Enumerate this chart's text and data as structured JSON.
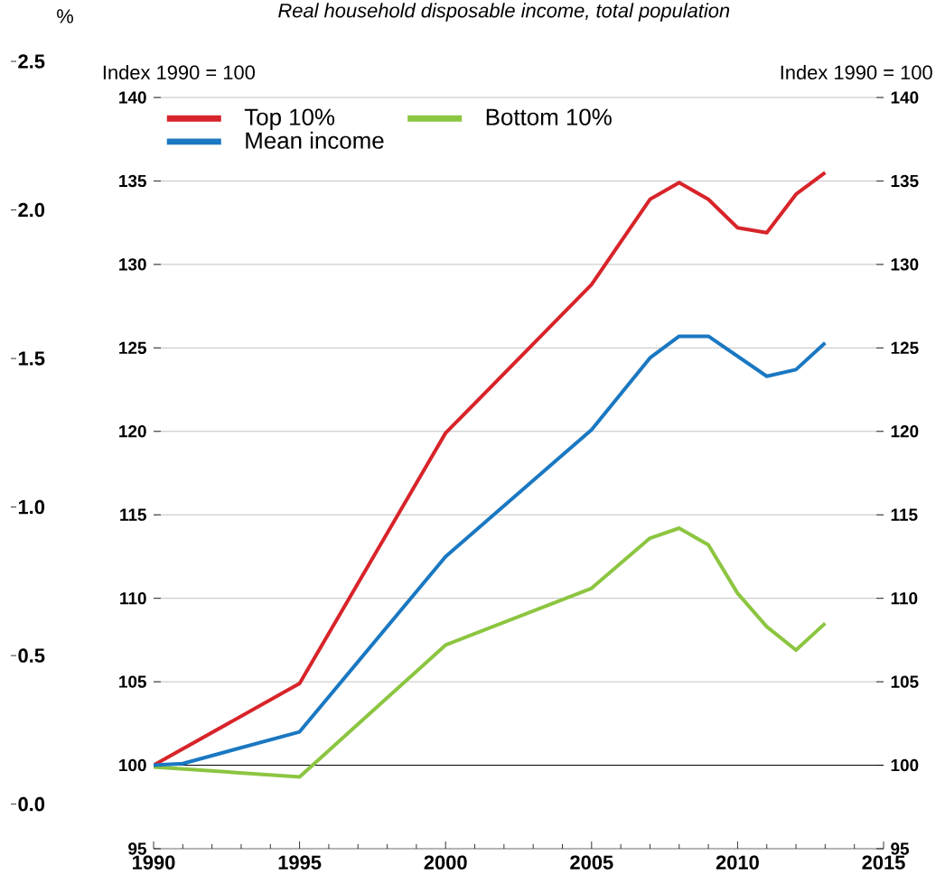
{
  "chart_data": {
    "type": "line",
    "title": "Real household disposable income, total population",
    "ylabel": "Index 1990 = 100",
    "y2label": "Index 1990 = 100",
    "y3label": "%",
    "series": [
      {
        "name": "Top 10%",
        "color": "#d7242a",
        "x": [
          1990,
          1995,
          2000,
          2005,
          2007,
          2008,
          2009,
          2010,
          2011,
          2012,
          2013
        ],
        "values": [
          100,
          104.9,
          119.9,
          128.8,
          133.9,
          134.9,
          133.9,
          132.2,
          131.9,
          134.2,
          135.5
        ]
      },
      {
        "name": "Bottom 10%",
        "color": "#8cc540",
        "x": [
          1990,
          1995,
          2000,
          2005,
          2007,
          2008,
          2009,
          2010,
          2011,
          2012,
          2013
        ],
        "values": [
          99.9,
          99.3,
          107.2,
          110.6,
          113.6,
          114.2,
          113.2,
          110.3,
          108.3,
          106.9,
          108.5
        ]
      },
      {
        "name": "Mean income",
        "color": "#1a78c2",
        "x": [
          1990,
          1991,
          1995,
          2000,
          2005,
          2007,
          2008,
          2009,
          2010,
          2011,
          2012,
          2013
        ],
        "values": [
          100,
          100.1,
          102.0,
          112.5,
          120.1,
          124.4,
          125.7,
          125.7,
          124.5,
          123.3,
          123.7,
          125.3
        ]
      }
    ],
    "xlim": [
      1990,
      2015
    ],
    "xticks": [
      1990,
      1995,
      2000,
      2005,
      2010,
      2015
    ],
    "ylim": [
      95,
      140
    ],
    "yticks": [
      95,
      100,
      105,
      110,
      115,
      120,
      125,
      130,
      135,
      140
    ],
    "y2lim": [
      95,
      140
    ],
    "y2ticks": [
      95,
      100,
      105,
      110,
      115,
      120,
      125,
      130,
      135,
      140
    ],
    "y3lim": [
      -0.15,
      2.5
    ],
    "y3ticks": [
      {
        "value": 0,
        "label": "0.0"
      },
      {
        "value": 0.5,
        "label": "0.5"
      },
      {
        "value": 1,
        "label": "1.0"
      },
      {
        "value": 1.5,
        "label": "1.5"
      },
      {
        "value": 2,
        "label": "2.0"
      },
      {
        "value": 2.5,
        "label": "2.5"
      }
    ],
    "ref_lines": [
      {
        "axis": "y",
        "value": 100,
        "color": "#000000"
      }
    ],
    "grid": "y",
    "legend": "top left",
    "marker": "none",
    "line_style": "solid"
  }
}
